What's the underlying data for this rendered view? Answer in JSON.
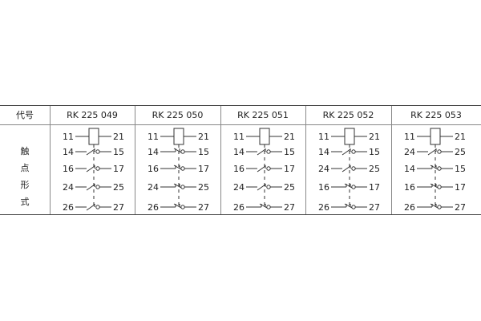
{
  "header": {
    "code_label": "代号"
  },
  "row_label_chars": [
    "触",
    "点",
    "形",
    "式"
  ],
  "coil": {
    "left": "11",
    "right": "21"
  },
  "models": [
    {
      "code": "RK 225 049",
      "contacts": [
        {
          "left": "14",
          "right": "15",
          "type": "NO"
        },
        {
          "left": "16",
          "right": "17",
          "type": "NO"
        },
        {
          "left": "24",
          "right": "25",
          "type": "NO"
        },
        {
          "left": "26",
          "right": "27",
          "type": "NO"
        }
      ]
    },
    {
      "code": "RK 225 050",
      "contacts": [
        {
          "left": "14",
          "right": "15",
          "type": "NC"
        },
        {
          "left": "16",
          "right": "17",
          "type": "NC"
        },
        {
          "left": "24",
          "right": "25",
          "type": "NC"
        },
        {
          "left": "26",
          "right": "27",
          "type": "NC"
        }
      ]
    },
    {
      "code": "RK 225 051",
      "contacts": [
        {
          "left": "14",
          "right": "15",
          "type": "NO"
        },
        {
          "left": "16",
          "right": "17",
          "type": "NO"
        },
        {
          "left": "24",
          "right": "25",
          "type": "NO"
        },
        {
          "left": "26",
          "right": "27",
          "type": "NC"
        }
      ]
    },
    {
      "code": "RK 225 052",
      "contacts": [
        {
          "left": "14",
          "right": "15",
          "type": "NO"
        },
        {
          "left": "24",
          "right": "25",
          "type": "NO"
        },
        {
          "left": "16",
          "right": "17",
          "type": "NC"
        },
        {
          "left": "26",
          "right": "27",
          "type": "NC"
        }
      ]
    },
    {
      "code": "RK 225 053",
      "contacts": [
        {
          "left": "24",
          "right": "25",
          "type": "NO"
        },
        {
          "left": "14",
          "right": "15",
          "type": "NC"
        },
        {
          "left": "16",
          "right": "17",
          "type": "NC"
        },
        {
          "left": "26",
          "right": "27",
          "type": "NC"
        }
      ]
    }
  ]
}
